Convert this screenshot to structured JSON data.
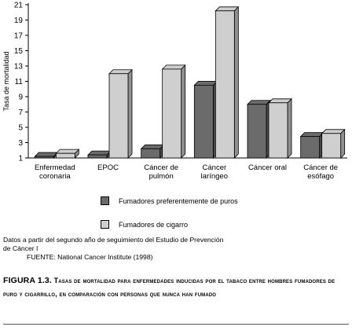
{
  "chart_data": {
    "type": "bar",
    "ylabel": "Tasa de mortalidad",
    "ylim": [
      1,
      21
    ],
    "yticks": [
      1,
      3,
      5,
      7,
      9,
      11,
      13,
      15,
      17,
      19,
      21
    ],
    "categories": [
      [
        "Enfermedad",
        "coronaria"
      ],
      [
        "EPOC",
        ""
      ],
      [
        "Cáncer de",
        "pulmón"
      ],
      [
        "Cáncer",
        "laríngeo"
      ],
      [
        "Cáncer oral",
        ""
      ],
      [
        "Cáncer de",
        "esófago"
      ]
    ],
    "series": [
      {
        "name": "Fumadores preferentemente de puros",
        "color": "#6b6b6b",
        "values": [
          1.2,
          1.4,
          2.2,
          10.5,
          8.0,
          3.8
        ]
      },
      {
        "name": "Fumadores de cigarro",
        "color": "#cfcfcf",
        "values": [
          1.6,
          12.0,
          12.6,
          20.2,
          8.2,
          4.2
        ]
      }
    ],
    "grid": false,
    "legend": "bottom"
  },
  "source": {
    "line1": "Datos a partir del segundo año de seguimiento del Estudio de Prevención",
    "line2": "de Cáncer I",
    "line3": "FUENTE: National Cancer Institute (1998)"
  },
  "caption": {
    "label": "Figura 1.3.",
    "text": "Tasas de mortalidad para enfermedades inducidas por el tabaco entre hombres fumadores de puro y cigarrillo, en comparación con personas que nunca han fumado"
  }
}
